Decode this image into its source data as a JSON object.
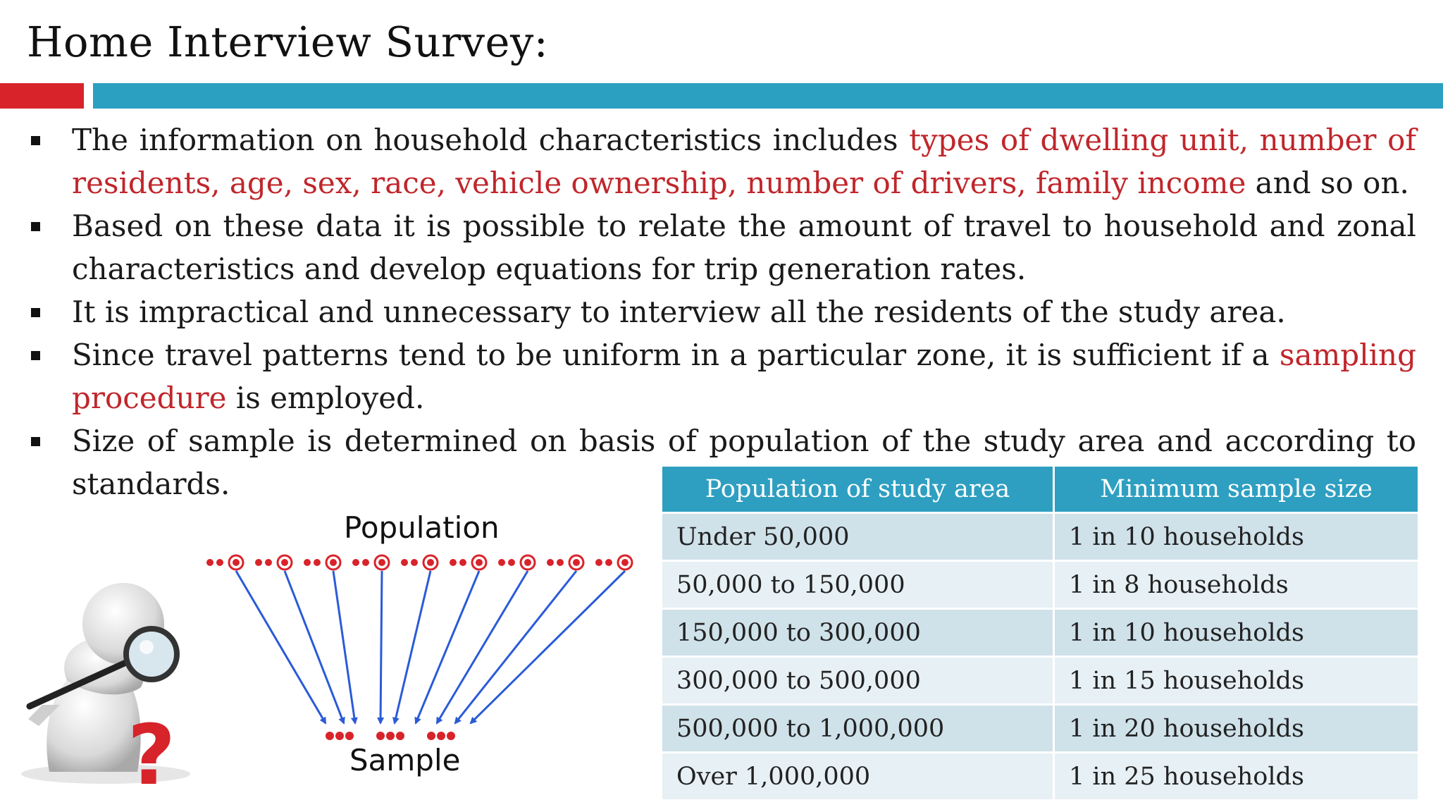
{
  "title": "Home Interview Survey:",
  "bullets": [
    {
      "parts": [
        {
          "text": "The information on household characteristics includes ",
          "highlight": false
        },
        {
          "text": "types of dwelling unit, number of residents, age, sex, race, vehicle ownership, number of drivers, family income",
          "highlight": true
        },
        {
          "text": " and so on.",
          "highlight": false
        }
      ]
    },
    {
      "parts": [
        {
          "text": "Based on these data it is possible to relate the amount of travel to household and zonal characteristics and develop equations for trip generation rates.",
          "highlight": false
        }
      ]
    },
    {
      "parts": [
        {
          "text": "It is impractical and unnecessary to interview all the residents of the study area.",
          "highlight": false
        }
      ]
    },
    {
      "parts": [
        {
          "text": "Since travel patterns tend to be uniform in a particular zone, it is sufficient if a ",
          "highlight": false
        },
        {
          "text": "sampling procedure",
          "highlight": true
        },
        {
          "text": " is employed.",
          "highlight": false
        }
      ]
    },
    {
      "parts": [
        {
          "text": "Size of sample is determined on basis of population of the study area and according to standards.",
          "highlight": false
        }
      ]
    }
  ],
  "table": {
    "headers": [
      "Population of study area",
      "Minimum sample size"
    ],
    "rows": [
      [
        "Under 50,000",
        "1 in 10 households"
      ],
      [
        "50,000 to 150,000",
        "1 in 8 households"
      ],
      [
        "150,000 to 300,000",
        "1 in 10 households"
      ],
      [
        "300,000 to 500,000",
        "1 in 15 households"
      ],
      [
        "500,000 to 1,000,000",
        "1 in 20 households"
      ],
      [
        "Over 1,000,000",
        "1 in 25 households"
      ]
    ]
  },
  "diagram": {
    "population_label": "Population",
    "sample_label": "Sample"
  },
  "colors": {
    "accent_red": "#d9232a",
    "accent_blue": "#2ba0c0",
    "highlight_text": "#c0262b",
    "table_header": "#2e9fc1",
    "arrow_blue": "#2a5bd7",
    "dot_red": "#d9232a"
  }
}
